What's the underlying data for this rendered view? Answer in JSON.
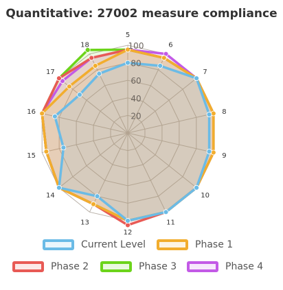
{
  "chart_data": {
    "type": "radar",
    "title": "Quantitative: 27002 measure compliance",
    "categories": [
      "5",
      "6",
      "7",
      "8",
      "9",
      "10",
      "11",
      "12",
      "13",
      "14",
      "15",
      "16",
      "17",
      "18"
    ],
    "r_ticks": [
      "20",
      "40",
      "60",
      "80",
      "100"
    ],
    "r_range": [
      0,
      100
    ],
    "grid": true,
    "legend_position": "bottom",
    "series": [
      {
        "name": "Current Level",
        "color": "#6bbbe6",
        "values": [
          80,
          85,
          100,
          95,
          95,
          100,
          100,
          100,
          80,
          100,
          75,
          85,
          70,
          75
        ]
      },
      {
        "name": "Phase 1",
        "color": "#f2ad2e",
        "values": [
          95,
          95,
          100,
          100,
          100,
          100,
          100,
          100,
          90,
          100,
          95,
          100,
          85,
          85
        ]
      },
      {
        "name": "Phase 2",
        "color": "#e85a55",
        "values": [
          95,
          95,
          100,
          100,
          100,
          100,
          100,
          105,
          90,
          100,
          95,
          100,
          100,
          95
        ]
      },
      {
        "name": "Phase 3",
        "color": "#6cd41b",
        "values": [
          95,
          95,
          100,
          100,
          100,
          100,
          100,
          100,
          90,
          100,
          95,
          100,
          100,
          105
        ]
      },
      {
        "name": "Phase 4",
        "color": "#c35ae6",
        "values": [
          95,
          100,
          100,
          100,
          100,
          100,
          100,
          100,
          90,
          100,
          95,
          100,
          95,
          95
        ]
      }
    ]
  }
}
